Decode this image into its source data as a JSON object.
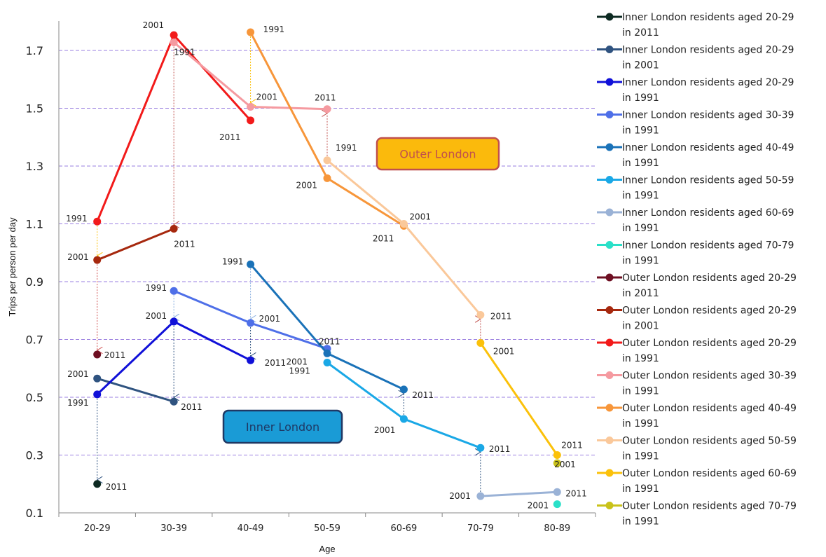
{
  "chart_data": {
    "type": "line",
    "xlabel": "Age",
    "ylabel": "Trips per person per day",
    "ylim": [
      0.1,
      1.8
    ],
    "yticks": [
      0.1,
      0.3,
      0.5,
      0.7,
      0.9,
      1.1,
      1.3,
      1.5,
      1.7
    ],
    "ytick_labels": [
      "0.1",
      "0.3",
      "0.5",
      "0.7",
      "0.9",
      "1.1",
      "1.3",
      "1.5",
      "1.7"
    ],
    "gridlines": "horizontal dashed",
    "legend_position": "right",
    "categories": [
      "20-29",
      "30-39",
      "40-49",
      "50-59",
      "60-69",
      "70-79",
      "80-89"
    ],
    "series": [
      {
        "name": "Inner London residents aged 20-29 in 2011",
        "color": "#0d2a22",
        "points": [
          {
            "x": "20-29",
            "y": 0.2,
            "label": "2011"
          }
        ]
      },
      {
        "name": "Inner London residents aged 20-29 in 2001",
        "color": "#2f5380",
        "points": [
          {
            "x": "20-29",
            "y": 0.565,
            "label": "2001"
          },
          {
            "x": "30-39",
            "y": 0.485,
            "label": "2011"
          }
        ]
      },
      {
        "name": "Inner London residents aged 20-29 in 1991",
        "color": "#1010d8",
        "points": [
          {
            "x": "20-29",
            "y": 0.51,
            "label": "1991"
          },
          {
            "x": "30-39",
            "y": 0.762,
            "label": "2001"
          },
          {
            "x": "40-49",
            "y": 0.628,
            "label": "2011"
          }
        ]
      },
      {
        "name": "Inner London residents aged 30-39 in 1991",
        "color": "#4e6fe8",
        "points": [
          {
            "x": "30-39",
            "y": 0.868,
            "label": "1991"
          },
          {
            "x": "40-49",
            "y": 0.757,
            "label": "2001"
          },
          {
            "x": "50-59",
            "y": 0.668,
            "label": "2011"
          }
        ]
      },
      {
        "name": "Inner London residents aged 40-49 in 1991",
        "color": "#1a72b8",
        "points": [
          {
            "x": "40-49",
            "y": 0.96,
            "label": "1991"
          },
          {
            "x": "50-59",
            "y": 0.652,
            "label": "2001"
          },
          {
            "x": "60-69",
            "y": 0.527,
            "label": "2011"
          }
        ]
      },
      {
        "name": "Inner London residents aged 50-59 in 1991",
        "color": "#1aa8e6",
        "points": [
          {
            "x": "50-59",
            "y": 0.62,
            "label": "1991"
          },
          {
            "x": "60-69",
            "y": 0.425,
            "label": "2001"
          },
          {
            "x": "70-79",
            "y": 0.325,
            "label": "2011"
          }
        ]
      },
      {
        "name": "Inner London residents aged 60-69 in 1991",
        "color": "#9ab2d6",
        "points": [
          {
            "x": "70-79",
            "y": 0.158,
            "label": "2001"
          },
          {
            "x": "80-89",
            "y": 0.172,
            "label": "2011"
          }
        ]
      },
      {
        "name": "Inner London residents aged 70-79 in 1991",
        "color": "#2ae0c8",
        "points": [
          {
            "x": "80-89",
            "y": 0.13,
            "label": "2001"
          }
        ]
      },
      {
        "name": "Outer London residents aged 20-29 in 2011",
        "color": "#6e0f22",
        "points": [
          {
            "x": "20-29",
            "y": 0.648,
            "label": "2011"
          }
        ]
      },
      {
        "name": "Outer London residents aged 20-29 in 2001",
        "color": "#a6280e",
        "points": [
          {
            "x": "20-29",
            "y": 0.975,
            "label": "2001"
          },
          {
            "x": "30-39",
            "y": 1.083,
            "label": "2011"
          }
        ]
      },
      {
        "name": "Outer London residents aged 20-29 in 1991",
        "color": "#f21a1a",
        "points": [
          {
            "x": "20-29",
            "y": 1.108,
            "label": "1991"
          },
          {
            "x": "30-39",
            "y": 1.753,
            "label": "2001"
          },
          {
            "x": "40-49",
            "y": 1.458,
            "label": "2011"
          }
        ]
      },
      {
        "name": "Outer London residents aged 30-39 in 1991",
        "color": "#f59aa0",
        "points": [
          {
            "x": "30-39",
            "y": 1.728,
            "label": "1991"
          },
          {
            "x": "40-49",
            "y": 1.505,
            "label": "2001"
          },
          {
            "x": "50-59",
            "y": 1.497,
            "label": "2011"
          }
        ]
      },
      {
        "name": "Outer London residents aged 40-49 in 1991",
        "color": "#f7963a",
        "points": [
          {
            "x": "40-49",
            "y": 1.763,
            "label": "1991"
          },
          {
            "x": "50-59",
            "y": 1.258,
            "label": "2001"
          },
          {
            "x": "60-69",
            "y": 1.093,
            "label": "2011"
          }
        ]
      },
      {
        "name": "Outer London residents aged 50-59 in 1991",
        "color": "#fac89a",
        "points": [
          {
            "x": "50-59",
            "y": 1.32,
            "label": "1991"
          },
          {
            "x": "60-69",
            "y": 1.1,
            "label": "2001"
          },
          {
            "x": "70-79",
            "y": 0.785,
            "label": "2011"
          }
        ]
      },
      {
        "name": "Outer London residents aged 60-69 in 1991",
        "color": "#fbc10a",
        "points": [
          {
            "x": "70-79",
            "y": 0.688,
            "label": "2001"
          },
          {
            "x": "80-89",
            "y": 0.3,
            "label": "2011"
          }
        ]
      },
      {
        "name": "Outer London residents aged 70-79 in 1991",
        "color": "#c9c21a",
        "points": [
          {
            "x": "80-89",
            "y": 0.272,
            "label": "2001"
          }
        ]
      }
    ],
    "annotations": [
      {
        "text": "Outer London",
        "fill": "#fbba0c",
        "border": "#c0504d",
        "text_color": "#c0504d"
      },
      {
        "text": "Inner London",
        "fill": "#1a9bd6",
        "border": "#1f3864",
        "text_color": "#1f3864"
      }
    ]
  }
}
